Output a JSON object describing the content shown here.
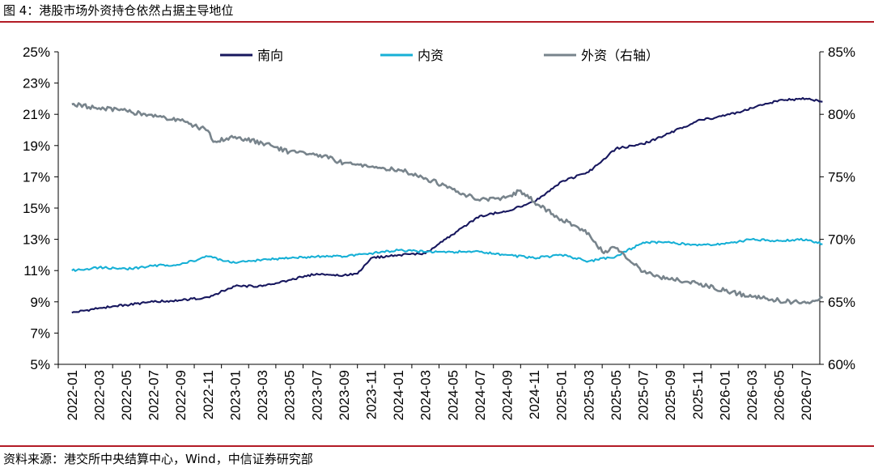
{
  "header": {
    "title": "图 4：港股市场外资持仓依然占据主导地位"
  },
  "footer": {
    "source": "资料来源：港交所中央结算中心，Wind，中信证券研究部"
  },
  "colors": {
    "south": "#17175e",
    "domestic": "#17b0d6",
    "foreign": "#78848c",
    "rule": "#b31b25"
  },
  "chart_data": {
    "type": "line",
    "x_ticks": [
      "2022-01",
      "2022-03",
      "2022-05",
      "2022-07",
      "2022-09",
      "2022-11",
      "2023-01",
      "2023-03",
      "2023-05",
      "2023-07",
      "2023-09",
      "2023-11",
      "2024-01",
      "2024-03",
      "2024-05",
      "2024-07",
      "2024-09",
      "2024-11",
      "2025-01",
      "2025-03",
      "2025-05",
      "2025-07",
      "2025-09",
      "2025-11",
      "2026-01",
      "2026-03",
      "2026-05",
      "2026-07"
    ],
    "y_left": {
      "min": 5,
      "max": 25,
      "ticks": [
        "5%",
        "7%",
        "9%",
        "11%",
        "13%",
        "15%",
        "17%",
        "19%",
        "21%",
        "23%",
        "25%"
      ]
    },
    "y_right": {
      "min": 60,
      "max": 85,
      "ticks": [
        "60%",
        "65%",
        "70%",
        "75%",
        "80%",
        "85%"
      ]
    },
    "legend_position": "top",
    "series": [
      {
        "name": "南向",
        "axis": "left",
        "color": "#17175e",
        "x": [
          0,
          1,
          2,
          3,
          4,
          5,
          6,
          7,
          8,
          9,
          10,
          10.5,
          11,
          12,
          13,
          14,
          15,
          16,
          17,
          18,
          19,
          20,
          21,
          22,
          23,
          24,
          25,
          26,
          27,
          27.6
        ],
        "values": [
          8.3,
          8.6,
          8.8,
          9.0,
          9.1,
          9.3,
          10.0,
          10.0,
          10.4,
          10.8,
          10.7,
          10.8,
          11.8,
          12.0,
          12.1,
          13.3,
          14.5,
          14.8,
          15.4,
          16.7,
          17.3,
          18.8,
          19.1,
          19.8,
          20.6,
          20.9,
          21.4,
          21.9,
          22.0,
          21.8
        ]
      },
      {
        "name": "内资",
        "axis": "left",
        "color": "#17b0d6",
        "x": [
          0,
          1,
          2,
          3,
          4,
          5,
          6,
          7,
          8,
          9,
          10,
          11,
          12,
          13,
          14,
          15,
          16,
          17,
          18,
          19,
          20,
          21,
          22,
          23,
          24,
          25,
          26,
          27,
          27.6
        ],
        "values": [
          11.0,
          11.2,
          11.1,
          11.3,
          11.4,
          11.9,
          11.5,
          11.7,
          11.8,
          11.9,
          11.9,
          12.1,
          12.3,
          12.2,
          12.2,
          12.2,
          12.0,
          11.8,
          12.0,
          11.6,
          11.9,
          12.8,
          12.8,
          12.6,
          12.7,
          13.0,
          12.9,
          13.0,
          12.7
        ]
      },
      {
        "name": "外资（右轴）",
        "axis": "right",
        "color": "#78848c",
        "x": [
          0,
          1,
          2,
          3,
          4,
          5,
          5.2,
          6,
          7,
          8,
          9,
          10,
          11,
          12,
          13,
          14,
          15,
          16,
          16.5,
          17,
          18,
          19,
          19.5,
          20,
          21,
          22,
          23,
          24,
          25,
          26,
          27,
          27.6
        ],
        "values": [
          80.8,
          80.5,
          80.3,
          79.8,
          79.5,
          78.7,
          77.8,
          78.2,
          77.7,
          77.0,
          76.8,
          76.1,
          75.8,
          75.6,
          74.9,
          74.0,
          73.1,
          73.4,
          73.9,
          73.0,
          71.6,
          70.5,
          69.0,
          69.3,
          67.4,
          66.8,
          66.5,
          65.9,
          65.4,
          65.1,
          64.9,
          65.3
        ]
      }
    ]
  }
}
